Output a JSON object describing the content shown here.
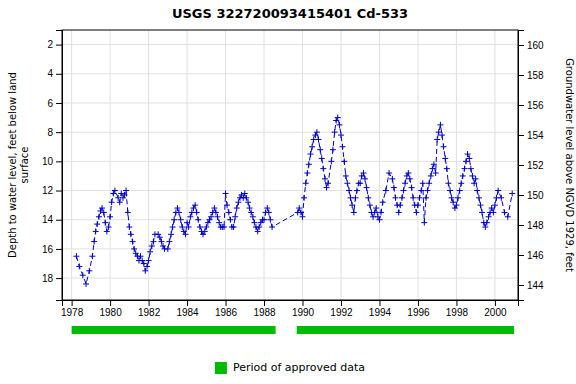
{
  "chart_data": {
    "type": "line",
    "title": "USGS 322720093415401 Cd-533",
    "ylabel": "Depth to water level, feet below land\nsurface",
    "y2label": "Groundwater level above NGVD 1929, feet",
    "xlim": [
      1977.5,
      2001.2
    ],
    "xticks": [
      1978,
      1980,
      1982,
      1984,
      1986,
      1988,
      1990,
      1992,
      1994,
      1996,
      1998,
      2000
    ],
    "ylim": [
      19.5,
      1.0
    ],
    "yticks": [
      2,
      4,
      6,
      8,
      10,
      12,
      14,
      16,
      18
    ],
    "y2lim": [
      143.0,
      161.0
    ],
    "y2ticks": [
      144,
      146,
      148,
      150,
      152,
      154,
      156,
      158,
      160
    ],
    "grid": true,
    "x": [
      1978.25,
      1978.4,
      1978.58,
      1978.75,
      1978.92,
      1979.08,
      1979.17,
      1979.25,
      1979.33,
      1979.42,
      1979.5,
      1979.58,
      1979.67,
      1979.75,
      1979.83,
      1979.92,
      1980.0,
      1980.08,
      1980.17,
      1980.25,
      1980.42,
      1980.5,
      1980.58,
      1980.67,
      1980.75,
      1980.83,
      1980.92,
      1981.0,
      1981.08,
      1981.17,
      1981.25,
      1981.33,
      1981.42,
      1981.5,
      1981.58,
      1981.67,
      1981.75,
      1981.83,
      1981.92,
      1982.0,
      1982.08,
      1982.17,
      1982.25,
      1982.33,
      1982.5,
      1982.58,
      1982.67,
      1982.75,
      1982.83,
      1983.0,
      1983.08,
      1983.17,
      1983.25,
      1983.33,
      1983.42,
      1983.5,
      1983.58,
      1983.67,
      1983.75,
      1983.83,
      1983.92,
      1984.0,
      1984.08,
      1984.17,
      1984.25,
      1984.33,
      1984.42,
      1984.5,
      1984.58,
      1984.67,
      1984.75,
      1984.83,
      1984.92,
      1985.0,
      1985.08,
      1985.17,
      1985.25,
      1985.33,
      1985.42,
      1985.5,
      1985.58,
      1985.67,
      1985.75,
      1985.83,
      1985.92,
      1986.0,
      1986.08,
      1986.17,
      1986.25,
      1986.33,
      1986.42,
      1986.5,
      1986.58,
      1986.67,
      1986.75,
      1986.83,
      1986.92,
      1987.0,
      1987.08,
      1987.17,
      1987.25,
      1987.33,
      1987.42,
      1987.5,
      1987.58,
      1987.67,
      1987.75,
      1987.83,
      1987.92,
      1988.0,
      1988.08,
      1988.17,
      1988.25,
      1988.33,
      1988.42,
      1989.75,
      1989.83,
      1989.92,
      1990.0,
      1990.08,
      1990.17,
      1990.25,
      1990.33,
      1990.42,
      1990.5,
      1990.58,
      1990.67,
      1990.75,
      1990.83,
      1990.92,
      1991.0,
      1991.08,
      1991.17,
      1991.25,
      1991.33,
      1991.5,
      1991.58,
      1991.67,
      1991.75,
      1991.83,
      1991.92,
      1992.0,
      1992.08,
      1992.17,
      1992.25,
      1992.33,
      1992.42,
      1992.5,
      1992.58,
      1992.67,
      1992.75,
      1992.83,
      1992.92,
      1993.0,
      1993.08,
      1993.17,
      1993.25,
      1993.33,
      1993.42,
      1993.5,
      1993.58,
      1993.67,
      1993.75,
      1993.83,
      1993.92,
      1994.0,
      1994.08,
      1994.17,
      1994.33,
      1994.5,
      1994.67,
      1994.75,
      1994.83,
      1994.92,
      1995.0,
      1995.08,
      1995.17,
      1995.25,
      1995.33,
      1995.42,
      1995.5,
      1995.58,
      1995.67,
      1995.75,
      1995.83,
      1995.92,
      1996.0,
      1996.08,
      1996.17,
      1996.25,
      1996.33,
      1996.42,
      1996.5,
      1996.58,
      1996.67,
      1996.75,
      1996.83,
      1996.92,
      1997.0,
      1997.08,
      1997.17,
      1997.25,
      1997.33,
      1997.42,
      1997.5,
      1997.58,
      1997.67,
      1997.75,
      1997.83,
      1997.92,
      1998.0,
      1998.08,
      1998.17,
      1998.25,
      1998.33,
      1998.42,
      1998.5,
      1998.58,
      1998.67,
      1998.75,
      1998.83,
      1998.92,
      1999.0,
      1999.08,
      1999.17,
      1999.25,
      1999.33,
      1999.42,
      1999.5,
      1999.58,
      1999.67,
      1999.75,
      1999.83,
      1999.92,
      2000.0,
      2000.08,
      2000.17,
      2000.33,
      2000.5,
      2000.67,
      2000.9
    ],
    "series": [
      {
        "color": "#0000CC",
        "marker": "plus",
        "line_style": "dashed",
        "values": [
          16.5,
          17.2,
          17.8,
          18.4,
          17.5,
          16.5,
          15.5,
          14.8,
          14.3,
          13.8,
          13.4,
          13.2,
          13.5,
          14.2,
          14.8,
          14.5,
          13.8,
          12.8,
          12.2,
          12.0,
          12.5,
          12.8,
          12.2,
          12.5,
          12.3,
          12.0,
          13.5,
          14.5,
          15.0,
          15.5,
          16.0,
          16.3,
          16.5,
          16.8,
          16.5,
          16.8,
          17.0,
          17.5,
          17.2,
          16.8,
          16.2,
          15.8,
          15.5,
          15.0,
          15.0,
          15.2,
          15.5,
          15.8,
          16.0,
          16.0,
          15.5,
          15.0,
          14.5,
          14.0,
          13.5,
          13.2,
          13.5,
          14.0,
          14.5,
          14.8,
          15.0,
          14.2,
          14.5,
          13.8,
          13.5,
          13.2,
          13.0,
          13.5,
          14.0,
          14.5,
          14.8,
          15.0,
          14.8,
          14.5,
          14.2,
          14.0,
          13.8,
          13.5,
          13.2,
          13.5,
          13.8,
          14.2,
          14.5,
          14.5,
          14.5,
          12.2,
          13.0,
          13.5,
          14.0,
          14.5,
          14.5,
          13.8,
          13.2,
          12.8,
          12.5,
          12.3,
          12.5,
          12.2,
          12.5,
          12.8,
          13.2,
          13.5,
          13.8,
          14.2,
          14.5,
          14.8,
          14.5,
          14.2,
          14.0,
          14.0,
          13.5,
          13.2,
          13.5,
          14.0,
          14.5,
          13.5,
          13.2,
          13.5,
          13.8,
          12.5,
          11.5,
          10.8,
          10.2,
          9.5,
          9.0,
          8.5,
          8.2,
          8.0,
          8.5,
          9.2,
          9.8,
          10.5,
          11.2,
          11.8,
          11.5,
          10.0,
          9.2,
          8.0,
          7.2,
          7.0,
          7.5,
          8.2,
          9.0,
          10.0,
          11.0,
          11.5,
          12.0,
          12.5,
          13.0,
          13.5,
          12.5,
          12.0,
          11.5,
          11.5,
          11.0,
          10.8,
          11.2,
          11.8,
          12.5,
          13.0,
          13.5,
          13.8,
          13.5,
          13.2,
          13.8,
          14.0,
          13.5,
          12.8,
          12.0,
          10.8,
          11.2,
          11.8,
          12.5,
          13.0,
          13.5,
          13.0,
          12.5,
          12.0,
          11.5,
          11.0,
          10.8,
          11.2,
          11.8,
          12.5,
          13.0,
          13.5,
          13.0,
          12.5,
          12.0,
          11.5,
          14.2,
          12.5,
          12.0,
          11.5,
          11.0,
          10.5,
          10.2,
          10.8,
          8.5,
          8.0,
          7.5,
          8.2,
          9.0,
          9.8,
          10.5,
          11.5,
          12.0,
          12.5,
          12.8,
          13.2,
          13.0,
          12.5,
          12.0,
          11.5,
          11.0,
          10.5,
          10.0,
          9.5,
          9.8,
          10.5,
          11.0,
          11.5,
          11.2,
          12.0,
          12.5,
          13.0,
          13.5,
          14.2,
          14.5,
          14.2,
          13.8,
          13.5,
          13.2,
          13.5,
          13.0,
          12.5,
          12.0,
          12.5,
          13.5,
          13.8,
          12.2
        ]
      }
    ],
    "approved_periods": {
      "name": "Period of approved data",
      "color": "#00bb00",
      "values": [
        [
          1978.0,
          1988.6
        ],
        [
          1989.7,
          2001.0
        ]
      ]
    }
  }
}
